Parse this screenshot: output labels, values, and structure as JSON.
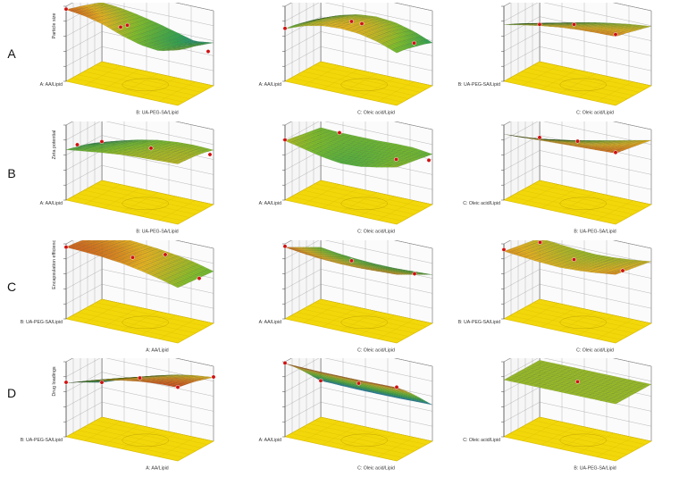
{
  "figure": {
    "row_labels": [
      "A",
      "B",
      "C",
      "D"
    ],
    "colors": {
      "base_plane": "#f2d70a",
      "base_plane_dark": "#d6b800",
      "grid": "#9a9a9a",
      "axis": "#444444",
      "point_marker": "#d01010",
      "surface_high": "#c8391c",
      "surface_mid_high": "#e8b21e",
      "surface_mid": "#7fbc2a",
      "surface_mid_low": "#2fa050",
      "surface_low": "#1c6cd0"
    }
  },
  "chart_data": [
    {
      "panel": "A1",
      "type": "surface",
      "response": "Particle size",
      "x_label": "B: UA-PEG-SA/Lipid",
      "y_label": "A: AA/Lipid",
      "heights": [
        [
          0.92,
          0.86,
          0.75,
          0.58,
          0.45,
          0.4,
          0.52
        ],
        [
          0.85,
          0.8,
          0.69,
          0.53,
          0.4,
          0.34,
          0.44
        ],
        [
          0.78,
          0.72,
          0.63,
          0.48,
          0.34,
          0.28,
          0.38
        ],
        [
          0.7,
          0.65,
          0.56,
          0.44,
          0.3,
          0.22,
          0.3
        ],
        [
          0.62,
          0.58,
          0.5,
          0.4,
          0.28,
          0.16,
          0.22
        ]
      ],
      "points": [
        [
          0.0,
          0.0,
          0.93
        ],
        [
          0.5,
          0.15,
          0.76
        ],
        [
          1.0,
          0.85,
          0.08
        ],
        [
          0.2,
          0.9,
          0.18
        ]
      ]
    },
    {
      "panel": "A2",
      "type": "surface",
      "response": "",
      "x_label": "C: Oleic acid/Lipid",
      "y_label": "A: AA/Lipid",
      "heights": [
        [
          0.45,
          0.62,
          0.72,
          0.75,
          0.72,
          0.62,
          0.45
        ],
        [
          0.42,
          0.6,
          0.7,
          0.74,
          0.7,
          0.6,
          0.42
        ],
        [
          0.36,
          0.55,
          0.66,
          0.7,
          0.66,
          0.55,
          0.36
        ],
        [
          0.3,
          0.48,
          0.6,
          0.64,
          0.6,
          0.48,
          0.3
        ],
        [
          0.22,
          0.4,
          0.52,
          0.56,
          0.52,
          0.4,
          0.22
        ]
      ],
      "points": [
        [
          0.0,
          0.0,
          0.46
        ],
        [
          0.5,
          0.3,
          0.78
        ],
        [
          0.9,
          0.8,
          0.25
        ],
        [
          0.4,
          0.9,
          0.38
        ]
      ]
    },
    {
      "panel": "A3",
      "type": "surface",
      "response": "",
      "x_label": "C: Oleic acid/Lipid",
      "y_label": "B: UA-PEG-SA/Lipid",
      "heights": [
        [
          0.55,
          0.64,
          0.72,
          0.78,
          0.82,
          0.84,
          0.85
        ],
        [
          0.45,
          0.55,
          0.63,
          0.7,
          0.75,
          0.78,
          0.8
        ],
        [
          0.34,
          0.44,
          0.53,
          0.61,
          0.67,
          0.71,
          0.74
        ],
        [
          0.22,
          0.33,
          0.43,
          0.52,
          0.59,
          0.64,
          0.68
        ],
        [
          0.1,
          0.21,
          0.32,
          0.42,
          0.5,
          0.57,
          0.62
        ]
      ],
      "points": [
        [
          1.0,
          0.0,
          0.9
        ],
        [
          0.5,
          0.4,
          0.66
        ],
        [
          0.0,
          1.0,
          0.08
        ]
      ]
    },
    {
      "panel": "B1",
      "type": "surface",
      "response": "Zeta potential",
      "x_label": "B: UA-PEG-SA/Lipid",
      "y_label": "A: AA/Lipid",
      "heights": [
        [
          0.4,
          0.46,
          0.52,
          0.57,
          0.6,
          0.62,
          0.64
        ],
        [
          0.34,
          0.42,
          0.49,
          0.55,
          0.59,
          0.61,
          0.62
        ],
        [
          0.28,
          0.38,
          0.46,
          0.52,
          0.57,
          0.6,
          0.6
        ],
        [
          0.2,
          0.32,
          0.42,
          0.49,
          0.54,
          0.57,
          0.56
        ],
        [
          0.1,
          0.24,
          0.36,
          0.45,
          0.5,
          0.52,
          0.5
        ]
      ],
      "points": [
        [
          0.1,
          0.0,
          0.58
        ],
        [
          0.0,
          1.0,
          0.12
        ],
        [
          1.0,
          0.9,
          0.44
        ],
        [
          0.6,
          0.5,
          0.55
        ]
      ]
    },
    {
      "panel": "B2",
      "type": "surface",
      "response": "",
      "x_label": "C: Oleic acid/Lipid",
      "y_label": "A: AA/Lipid",
      "heights": [
        [
          0.62,
          0.52,
          0.42,
          0.36,
          0.38,
          0.46,
          0.56
        ],
        [
          0.58,
          0.5,
          0.42,
          0.38,
          0.4,
          0.46,
          0.52
        ],
        [
          0.54,
          0.48,
          0.42,
          0.4,
          0.42,
          0.46,
          0.48
        ],
        [
          0.5,
          0.46,
          0.43,
          0.42,
          0.44,
          0.46,
          0.44
        ],
        [
          0.46,
          0.44,
          0.44,
          0.44,
          0.46,
          0.46,
          0.4
        ]
      ],
      "points": [
        [
          0.0,
          0.0,
          0.64
        ],
        [
          0.9,
          0.3,
          0.55
        ],
        [
          1.0,
          0.9,
          0.3
        ],
        [
          0.2,
          0.9,
          0.5
        ]
      ]
    },
    {
      "panel": "B3",
      "type": "surface",
      "response": "",
      "x_label": "B: UA-PEG-SA/Lipid",
      "y_label": "C: Oleic acid/Lipid",
      "heights": [
        [
          0.78,
          0.8,
          0.82,
          0.84,
          0.86,
          0.88,
          0.9
        ],
        [
          0.62,
          0.66,
          0.7,
          0.74,
          0.78,
          0.82,
          0.86
        ],
        [
          0.46,
          0.52,
          0.58,
          0.64,
          0.7,
          0.76,
          0.82
        ],
        [
          0.32,
          0.38,
          0.46,
          0.54,
          0.62,
          0.7,
          0.78
        ],
        [
          0.18,
          0.26,
          0.34,
          0.44,
          0.54,
          0.64,
          0.74
        ]
      ],
      "points": [
        [
          1.0,
          0.0,
          0.92
        ],
        [
          0.5,
          0.5,
          0.66
        ],
        [
          0.0,
          1.0,
          0.22
        ]
      ]
    },
    {
      "panel": "C1",
      "type": "surface",
      "response": "Encapsulation efficiency",
      "x_label": "A: AA/Lipid",
      "y_label": "B: UA-PEG-SA/Lipid",
      "heights": [
        [
          0.92,
          0.9,
          0.87,
          0.82,
          0.74,
          0.64,
          0.52
        ],
        [
          0.9,
          0.88,
          0.85,
          0.8,
          0.72,
          0.62,
          0.5
        ],
        [
          0.86,
          0.85,
          0.82,
          0.77,
          0.7,
          0.6,
          0.48
        ],
        [
          0.82,
          0.81,
          0.78,
          0.74,
          0.67,
          0.58,
          0.46
        ],
        [
          0.78,
          0.77,
          0.74,
          0.7,
          0.64,
          0.56,
          0.44
        ]
      ],
      "points": [
        [
          0.0,
          0.0,
          0.92
        ],
        [
          0.5,
          0.3,
          0.82
        ],
        [
          1.0,
          0.6,
          0.46
        ],
        [
          0.6,
          0.9,
          0.66
        ]
      ]
    },
    {
      "panel": "C2",
      "type": "surface",
      "response": "",
      "x_label": "C: Oleic acid/Lipid",
      "y_label": "A: AA/Lipid",
      "heights": [
        [
          0.92,
          0.86,
          0.82,
          0.8,
          0.8,
          0.82,
          0.84
        ],
        [
          0.8,
          0.74,
          0.7,
          0.68,
          0.68,
          0.7,
          0.72
        ],
        [
          0.68,
          0.62,
          0.58,
          0.56,
          0.56,
          0.58,
          0.6
        ],
        [
          0.56,
          0.5,
          0.46,
          0.44,
          0.44,
          0.46,
          0.48
        ],
        [
          0.44,
          0.38,
          0.34,
          0.32,
          0.32,
          0.34,
          0.36
        ]
      ],
      "points": [
        [
          0.0,
          0.0,
          0.94
        ],
        [
          0.5,
          0.3,
          0.74
        ],
        [
          1.0,
          0.5,
          0.62
        ]
      ]
    },
    {
      "panel": "C3",
      "type": "surface",
      "response": "",
      "x_label": "C: Oleic acid/Lipid",
      "y_label": "B: UA-PEG-SA/Lipid",
      "heights": [
        [
          0.82,
          0.78,
          0.74,
          0.72,
          0.74,
          0.78,
          0.84
        ],
        [
          0.78,
          0.74,
          0.7,
          0.68,
          0.7,
          0.74,
          0.8
        ],
        [
          0.74,
          0.7,
          0.66,
          0.64,
          0.66,
          0.7,
          0.76
        ],
        [
          0.7,
          0.66,
          0.62,
          0.6,
          0.62,
          0.66,
          0.72
        ],
        [
          0.66,
          0.62,
          0.58,
          0.56,
          0.58,
          0.62,
          0.68
        ]
      ],
      "points": [
        [
          0.0,
          0.0,
          0.86
        ],
        [
          0.5,
          0.4,
          0.72
        ],
        [
          1.0,
          0.2,
          0.84
        ],
        [
          0.1,
          0.7,
          0.76
        ]
      ]
    },
    {
      "panel": "D1",
      "type": "surface",
      "response": "Drug loadings",
      "x_label": "A: AA/Lipid",
      "y_label": "B: UA-PEG-SA/Lipid",
      "heights": [
        [
          0.48,
          0.62,
          0.74,
          0.84,
          0.91,
          0.95,
          0.96
        ],
        [
          0.38,
          0.53,
          0.66,
          0.77,
          0.85,
          0.9,
          0.92
        ],
        [
          0.26,
          0.42,
          0.56,
          0.68,
          0.78,
          0.84,
          0.87
        ],
        [
          0.14,
          0.3,
          0.45,
          0.58,
          0.69,
          0.76,
          0.8
        ],
        [
          0.02,
          0.18,
          0.34,
          0.48,
          0.6,
          0.68,
          0.73
        ]
      ],
      "points": [
        [
          0.0,
          0.0,
          0.5
        ],
        [
          1.0,
          0.0,
          0.97
        ],
        [
          0.5,
          0.5,
          0.66
        ],
        [
          0.0,
          1.0,
          0.02
        ],
        [
          1.0,
          1.0,
          0.74
        ]
      ]
    },
    {
      "panel": "D2",
      "type": "surface",
      "response": "",
      "x_label": "C: Oleic acid/Lipid",
      "y_label": "A: AA/Lipid",
      "heights": [
        [
          0.96,
          0.95,
          0.94,
          0.94,
          0.94,
          0.95,
          0.96
        ],
        [
          0.76,
          0.75,
          0.74,
          0.74,
          0.74,
          0.75,
          0.76
        ],
        [
          0.54,
          0.53,
          0.52,
          0.52,
          0.52,
          0.53,
          0.54
        ],
        [
          0.3,
          0.29,
          0.28,
          0.28,
          0.28,
          0.29,
          0.3
        ],
        [
          0.06,
          0.05,
          0.04,
          0.04,
          0.04,
          0.05,
          0.06
        ]
      ],
      "points": [
        [
          0.0,
          0.0,
          0.97
        ],
        [
          1.0,
          0.0,
          0.97
        ],
        [
          0.5,
          0.5,
          0.53
        ],
        [
          0.0,
          1.0,
          0.06
        ]
      ]
    },
    {
      "panel": "D3",
      "type": "surface",
      "response": "",
      "x_label": "B: UA-PEG-SA/Lipid",
      "y_label": "C: Oleic acid/Lipid",
      "heights": [
        [
          0.56,
          0.56,
          0.56,
          0.56,
          0.56,
          0.56,
          0.56
        ],
        [
          0.56,
          0.56,
          0.56,
          0.56,
          0.56,
          0.56,
          0.56
        ],
        [
          0.56,
          0.56,
          0.56,
          0.56,
          0.56,
          0.56,
          0.56
        ],
        [
          0.56,
          0.56,
          0.56,
          0.56,
          0.56,
          0.56,
          0.56
        ],
        [
          0.56,
          0.56,
          0.56,
          0.56,
          0.56,
          0.56,
          0.56
        ]
      ],
      "points": [
        [
          0.5,
          0.5,
          0.57
        ]
      ]
    }
  ]
}
